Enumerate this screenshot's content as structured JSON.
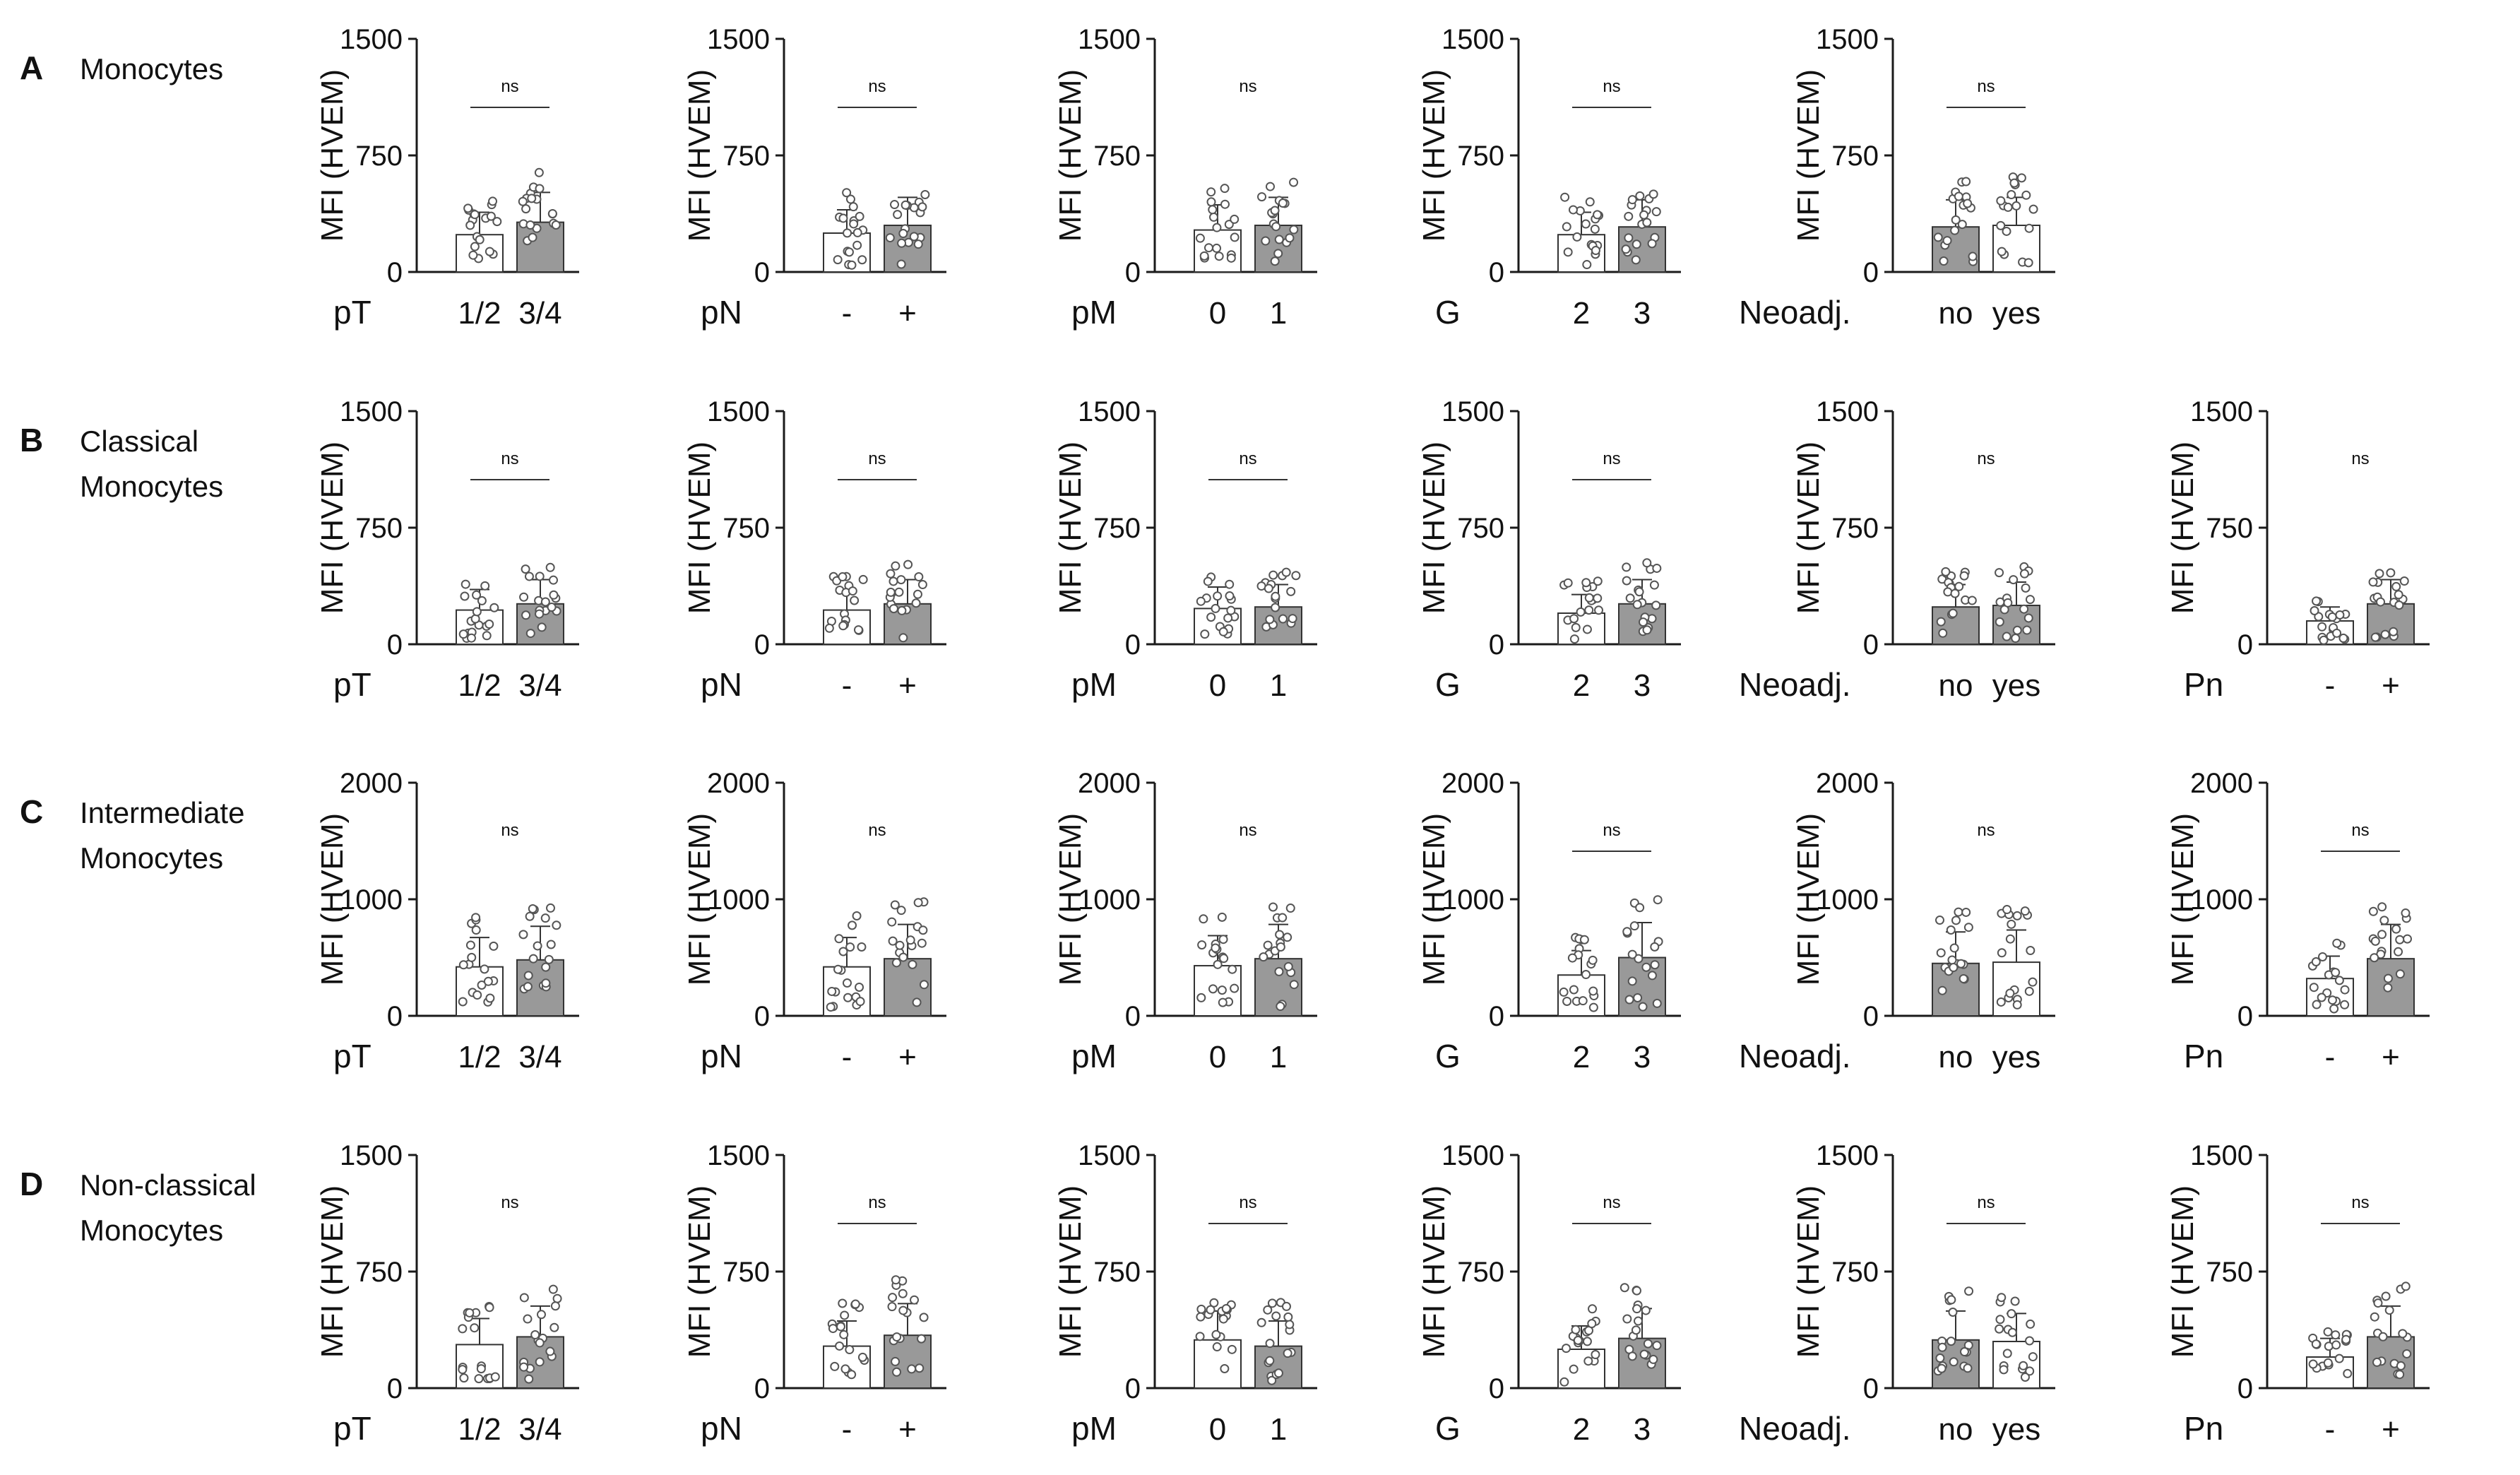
{
  "figure": {
    "y_axis_label": "MFI (HVEM)",
    "significance_label": "ns",
    "colors": {
      "axis": "#1a1a1a",
      "bar_open": "#ffffff",
      "bar_filled": "#999999",
      "marker": "#555555",
      "text": "#111111"
    }
  },
  "chart_data": [
    {
      "panel": "A",
      "title_lines": [
        "Monocytes"
      ],
      "type": "bar",
      "ylim": [
        0,
        1500
      ],
      "ticks": [
        0,
        750,
        1500
      ],
      "plots": [
        {
          "variable": "pT",
          "categories": [
            "1/2",
            "3/4"
          ],
          "values": [
            240,
            320
          ],
          "fills": [
            "open",
            "filled"
          ],
          "ns": true,
          "bracket": true
        },
        {
          "variable": "pN",
          "categories": [
            "-",
            "+"
          ],
          "values": [
            250,
            300
          ],
          "fills": [
            "open",
            "filled"
          ],
          "ns": true,
          "bracket": true
        },
        {
          "variable": "pM",
          "categories": [
            "0",
            "1"
          ],
          "values": [
            270,
            300
          ],
          "fills": [
            "open",
            "filled"
          ],
          "ns": true,
          "bracket": false
        },
        {
          "variable": "G",
          "categories": [
            "2",
            "3"
          ],
          "values": [
            240,
            290
          ],
          "fills": [
            "open",
            "filled"
          ],
          "ns": true,
          "bracket": true
        },
        {
          "variable": "Neoadj.",
          "categories": [
            "no",
            "yes"
          ],
          "values": [
            290,
            300
          ],
          "fills": [
            "filled",
            "open"
          ],
          "ns": true,
          "bracket": true
        }
      ]
    },
    {
      "panel": "B",
      "title_lines": [
        "Classical",
        "Monocytes"
      ],
      "type": "bar",
      "ylim": [
        0,
        1500
      ],
      "ticks": [
        0,
        750,
        1500
      ],
      "plots": [
        {
          "variable": "pT",
          "categories": [
            "1/2",
            "3/4"
          ],
          "values": [
            220,
            260
          ],
          "fills": [
            "open",
            "filled"
          ],
          "ns": true,
          "bracket": true
        },
        {
          "variable": "pN",
          "categories": [
            "-",
            "+"
          ],
          "values": [
            220,
            260
          ],
          "fills": [
            "open",
            "filled"
          ],
          "ns": true,
          "bracket": true
        },
        {
          "variable": "pM",
          "categories": [
            "0",
            "1"
          ],
          "values": [
            230,
            240
          ],
          "fills": [
            "open",
            "filled"
          ],
          "ns": true,
          "bracket": true
        },
        {
          "variable": "G",
          "categories": [
            "2",
            "3"
          ],
          "values": [
            200,
            260
          ],
          "fills": [
            "open",
            "filled"
          ],
          "ns": true,
          "bracket": true
        },
        {
          "variable": "Neoadj.",
          "categories": [
            "no",
            "yes"
          ],
          "values": [
            240,
            250
          ],
          "fills": [
            "filled",
            "filled"
          ],
          "ns": true,
          "bracket": false
        },
        {
          "variable": "Pn",
          "categories": [
            "-",
            "+"
          ],
          "values": [
            150,
            260
          ],
          "fills": [
            "open",
            "filled"
          ],
          "ns": true,
          "bracket": false
        }
      ]
    },
    {
      "panel": "C",
      "title_lines": [
        "Intermediate",
        "Monocytes"
      ],
      "type": "bar",
      "ylim": [
        0,
        2000
      ],
      "ticks": [
        0,
        1000,
        2000
      ],
      "plots": [
        {
          "variable": "pT",
          "categories": [
            "1/2",
            "3/4"
          ],
          "values": [
            420,
            480
          ],
          "fills": [
            "open",
            "filled"
          ],
          "ns": true,
          "bracket": false
        },
        {
          "variable": "pN",
          "categories": [
            "-",
            "+"
          ],
          "values": [
            420,
            490
          ],
          "fills": [
            "open",
            "filled"
          ],
          "ns": true,
          "bracket": false
        },
        {
          "variable": "pM",
          "categories": [
            "0",
            "1"
          ],
          "values": [
            430,
            490
          ],
          "fills": [
            "open",
            "filled"
          ],
          "ns": true,
          "bracket": false
        },
        {
          "variable": "G",
          "categories": [
            "2",
            "3"
          ],
          "values": [
            350,
            500
          ],
          "fills": [
            "open",
            "filled"
          ],
          "ns": true,
          "bracket": true
        },
        {
          "variable": "Neoadj.",
          "categories": [
            "no",
            "yes"
          ],
          "values": [
            450,
            460
          ],
          "fills": [
            "filled",
            "open"
          ],
          "ns": true,
          "bracket": false
        },
        {
          "variable": "Pn",
          "categories": [
            "-",
            "+"
          ],
          "values": [
            320,
            490
          ],
          "fills": [
            "open",
            "filled"
          ],
          "ns": true,
          "bracket": true
        }
      ]
    },
    {
      "panel": "D",
      "title_lines": [
        "Non-classical",
        "Monocytes"
      ],
      "type": "bar",
      "ylim": [
        0,
        1500
      ],
      "ticks": [
        0,
        750,
        1500
      ],
      "plots": [
        {
          "variable": "pT",
          "categories": [
            "1/2",
            "3/4"
          ],
          "values": [
            280,
            330
          ],
          "fills": [
            "open",
            "filled"
          ],
          "ns": true,
          "bracket": false
        },
        {
          "variable": "pN",
          "categories": [
            "-",
            "+"
          ],
          "values": [
            270,
            340
          ],
          "fills": [
            "open",
            "filled"
          ],
          "ns": true,
          "bracket": true
        },
        {
          "variable": "pM",
          "categories": [
            "0",
            "1"
          ],
          "values": [
            310,
            270
          ],
          "fills": [
            "open",
            "filled"
          ],
          "ns": true,
          "bracket": true
        },
        {
          "variable": "G",
          "categories": [
            "2",
            "3"
          ],
          "values": [
            250,
            320
          ],
          "fills": [
            "open",
            "filled"
          ],
          "ns": true,
          "bracket": true
        },
        {
          "variable": "Neoadj.",
          "categories": [
            "no",
            "yes"
          ],
          "values": [
            310,
            300
          ],
          "fills": [
            "filled",
            "open"
          ],
          "ns": true,
          "bracket": true
        },
        {
          "variable": "Pn",
          "categories": [
            "-",
            "+"
          ],
          "values": [
            200,
            330
          ],
          "fills": [
            "open",
            "filled"
          ],
          "ns": true,
          "bracket": true
        }
      ]
    }
  ]
}
